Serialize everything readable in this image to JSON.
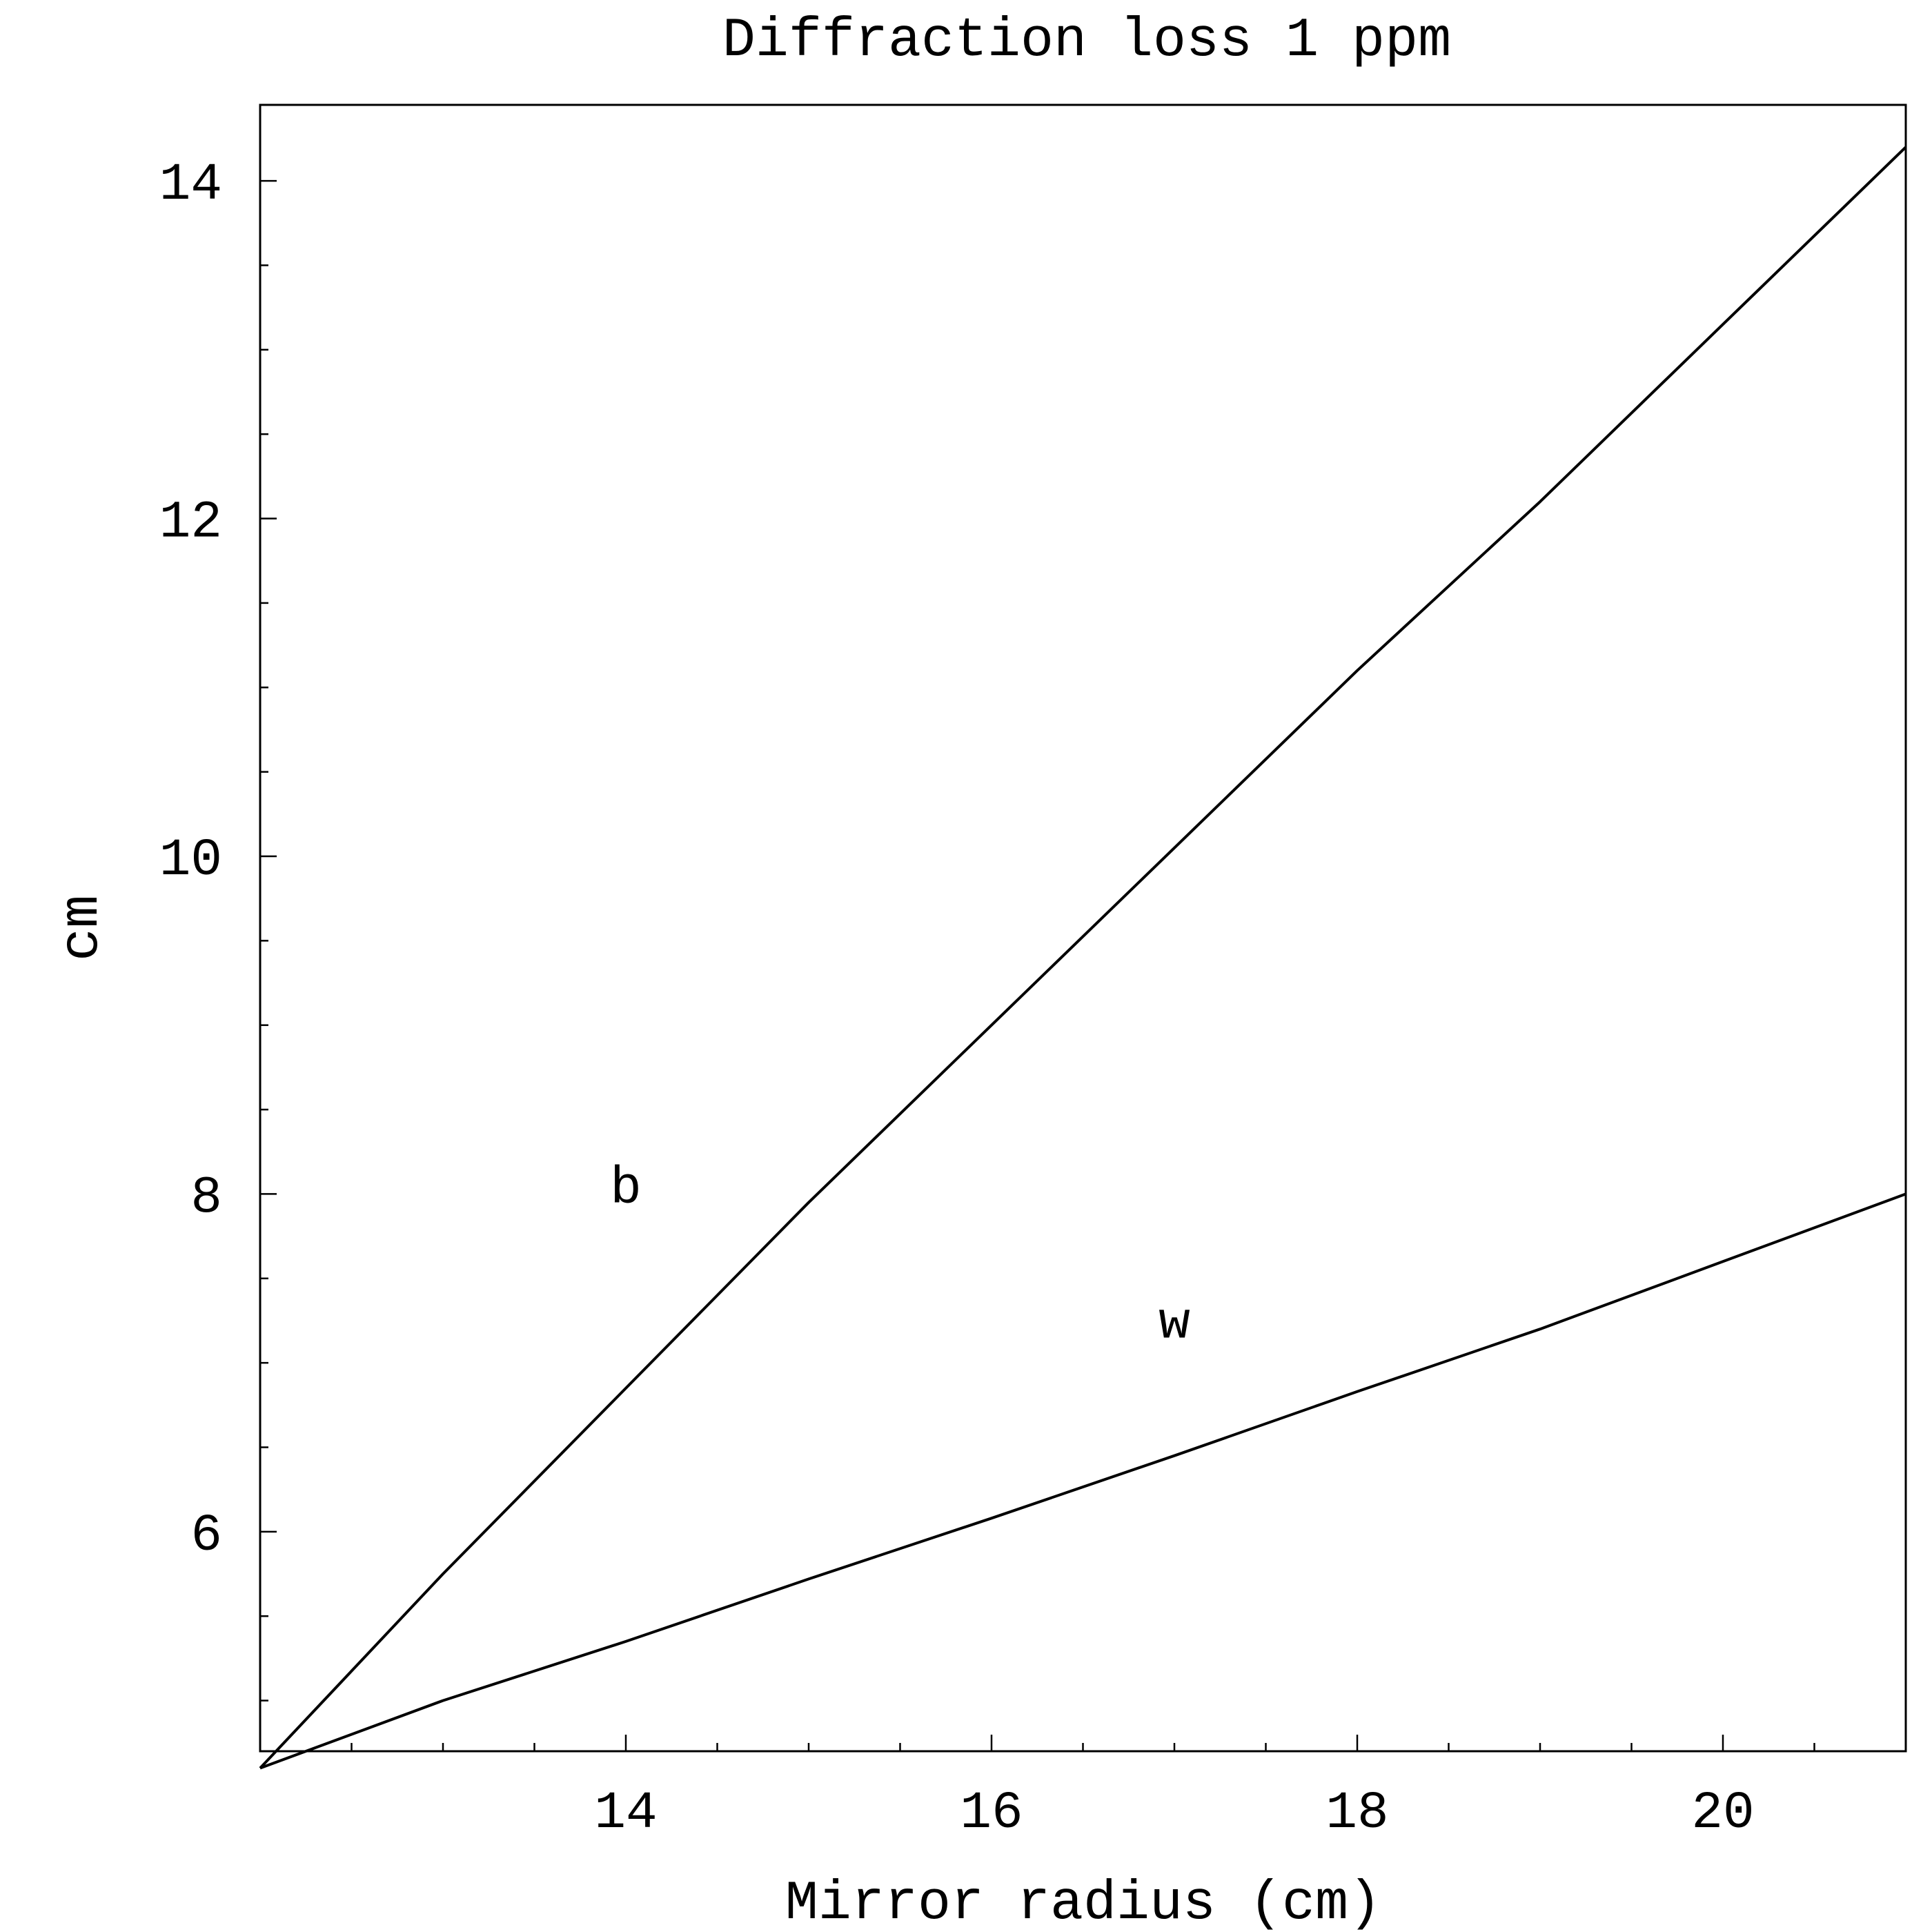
{
  "chart_data": {
    "type": "line",
    "title": "Diffraction loss 1 ppm",
    "xlabel": "Mirror  radius (cm)",
    "ylabel": "cm",
    "xlim": [
      12,
      21
    ],
    "ylim": [
      4.7,
      14.45
    ],
    "x_ticks": [
      14,
      16,
      18,
      20
    ],
    "y_ticks": [
      6,
      8,
      10,
      12,
      14
    ],
    "x_tick_labels": [
      "14",
      "16",
      "18",
      "20"
    ],
    "y_tick_labels": [
      "6",
      "8",
      "10",
      "12",
      "14"
    ],
    "x_minor_step": 0.5,
    "y_minor_step": 0.5,
    "grid": false,
    "series": [
      {
        "name": "b",
        "x": [
          12,
          13,
          14,
          15,
          16,
          17,
          18,
          19,
          20,
          21
        ],
        "values": [
          4.6,
          5.75,
          6.85,
          7.95,
          9.0,
          10.05,
          11.1,
          12.1,
          13.15,
          14.2
        ]
      },
      {
        "name": "w",
        "x": [
          12,
          13,
          14,
          15,
          16,
          17,
          18,
          19,
          20,
          21
        ],
        "values": [
          4.6,
          5.0,
          5.35,
          5.72,
          6.08,
          6.45,
          6.83,
          7.2,
          7.6,
          8.0
        ]
      }
    ],
    "annotations": [
      {
        "text": "b",
        "x": 14.0,
        "y": 7.95
      },
      {
        "text": "w",
        "x": 17.0,
        "y": 7.15
      }
    ]
  }
}
